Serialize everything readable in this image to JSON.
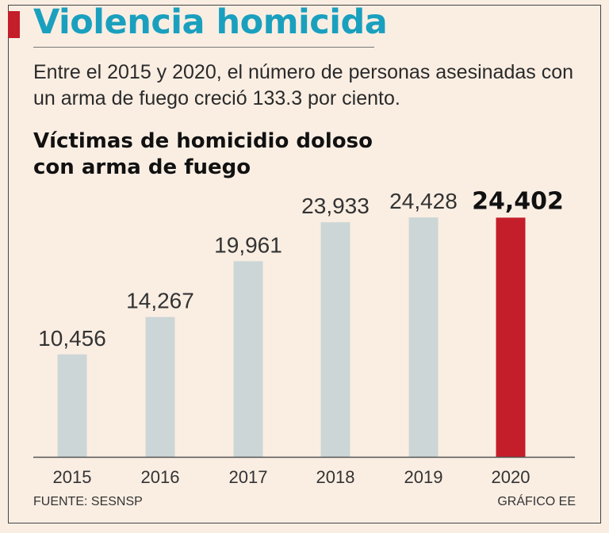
{
  "header": {
    "title": "Violencia homicida",
    "subtitle": "Entre el 2015 y 2020, el número de personas asesinadas con un arma de fuego creció 133.3 por ciento."
  },
  "chart_title": {
    "line1": "Víctimas de homicidio doloso",
    "line2": "con arma de fuego"
  },
  "chart_data": {
    "type": "bar",
    "title": "Víctimas de homicidio doloso con arma de fuego",
    "categories": [
      "2015",
      "2016",
      "2017",
      "2018",
      "2019",
      "2020"
    ],
    "values": [
      10456,
      14267,
      19961,
      23933,
      24428,
      24402
    ],
    "value_labels": [
      "10,456",
      "14,267",
      "19,961",
      "23,933",
      "24,428",
      "24,402"
    ],
    "highlight_index": 5,
    "xlabel": "",
    "ylabel": "",
    "ylim": [
      0,
      25000
    ],
    "grid": false,
    "colors": {
      "bar": "#cdd6d6",
      "highlight": "#c41e2a",
      "axis": "#555555",
      "label": "#333333",
      "highlight_label": "#111111"
    }
  },
  "footer": {
    "source": "FUENTE: SESNSP",
    "credit": "GRÁFICO EE"
  },
  "colors": {
    "background": "#faeee3",
    "title": "#1aa0be",
    "accent": "#c41e2a"
  }
}
